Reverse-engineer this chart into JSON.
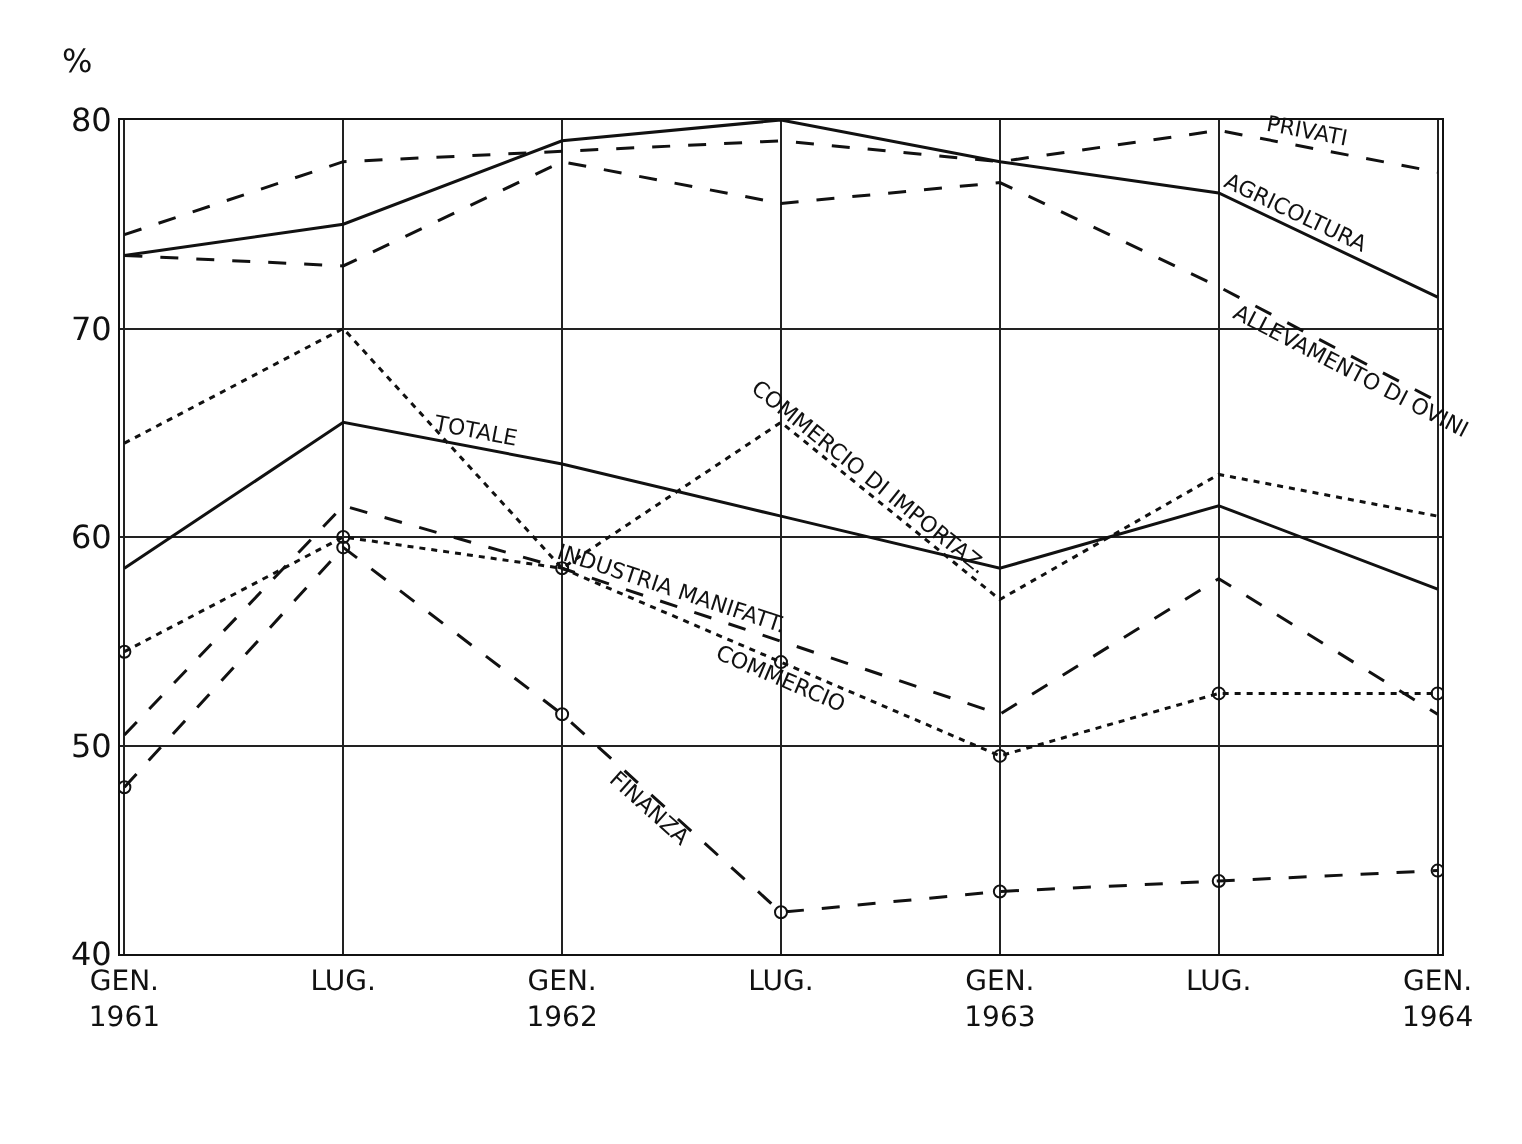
{
  "chart_data": {
    "type": "line",
    "ylabel": "%",
    "categories": [
      "GEN.\n1961",
      "LUG.",
      "GEN.\n1962",
      "LUG.",
      "GEN.\n1963",
      "LUG.",
      "GEN.\n1964"
    ],
    "ylim": [
      40,
      80
    ],
    "yticks": [
      40,
      50,
      60,
      70,
      80
    ],
    "grid": true,
    "legend": false,
    "series": [
      {
        "name": "PRIVATI",
        "color": "#111111",
        "line_style": "dashed",
        "marker": "none",
        "values": [
          74.5,
          78,
          78.5,
          79,
          78,
          79.5,
          77.5
        ]
      },
      {
        "name": "AGRICOLTURA",
        "color": "#111111",
        "line_style": "solid",
        "marker": "none",
        "values": [
          73.5,
          75,
          79,
          80,
          78,
          76.5,
          71.5
        ]
      },
      {
        "name": "ALLEVAMENTO DI OVINI",
        "color": "#111111",
        "line_style": "dashed",
        "marker": "none",
        "values": [
          73.5,
          73,
          78,
          76,
          77,
          72,
          66.5
        ]
      },
      {
        "name": "COMMERCIO DI IMPORTAZ.",
        "color": "#111111",
        "line_style": "dotted",
        "marker": "none",
        "values": [
          64.5,
          70,
          58.5,
          65.5,
          57,
          63,
          61
        ]
      },
      {
        "name": "TOTALE",
        "color": "#111111",
        "line_style": "solid",
        "marker": "none",
        "values": [
          58.5,
          65.5,
          63.5,
          61,
          58.5,
          61.5,
          57.5
        ]
      },
      {
        "name": "INDUSTRIA MANIFATT.",
        "color": "#111111",
        "line_style": "dashed",
        "marker": "none",
        "values": [
          50.5,
          61.5,
          58.5,
          55,
          51.5,
          58,
          51.5
        ]
      },
      {
        "name": "COMMERCIO",
        "color": "#111111",
        "line_style": "dotted",
        "marker": "circle",
        "values": [
          54.5,
          60,
          58.5,
          54,
          49.5,
          52.5,
          52.5
        ]
      },
      {
        "name": "FINANZA",
        "color": "#111111",
        "line_style": "dashed",
        "marker": "circle",
        "values": [
          48,
          59.5,
          51.5,
          42,
          43,
          43.5,
          44
        ]
      }
    ]
  }
}
